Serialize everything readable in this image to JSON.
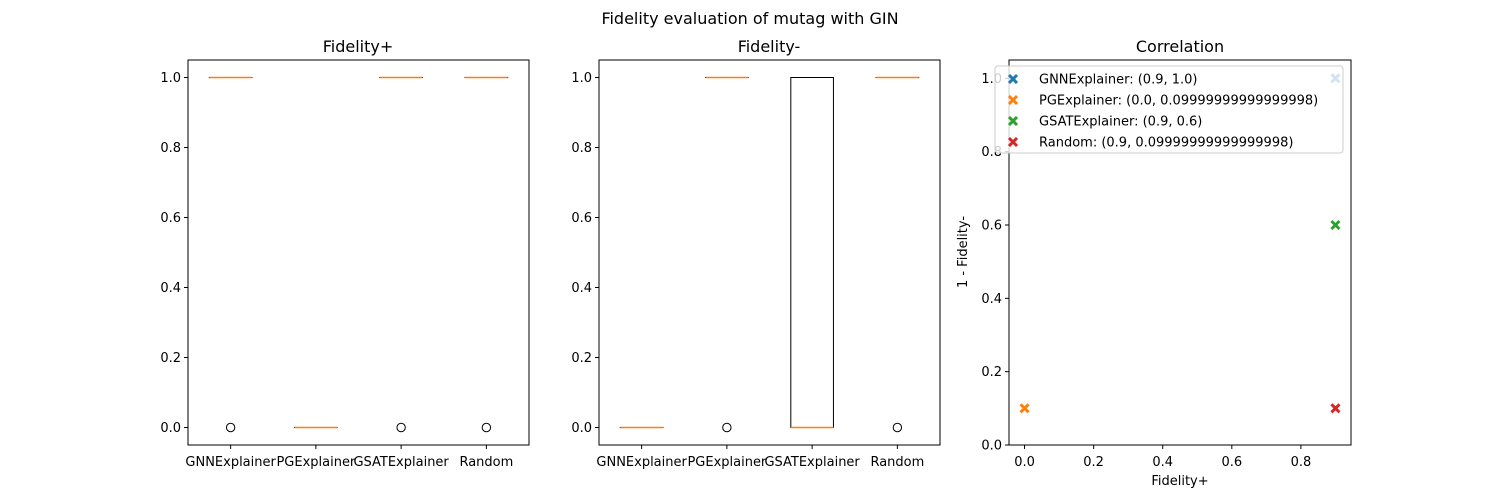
{
  "suptitle": "Fidelity evaluation of mutag with GIN",
  "colors": {
    "median": "#ff7f0e",
    "GNNExplainer": "#1f77b4",
    "PGExplainer": "#ff7f0e",
    "GSATExplainer": "#2ca02c",
    "Random": "#d62728"
  },
  "chart_data": [
    {
      "type": "box",
      "title": "Fidelity+",
      "categories": [
        "GNNExplainer",
        "PGExplainer",
        "GSATExplainer",
        "Random"
      ],
      "ylim": [
        -0.05,
        1.05
      ],
      "yticks": [
        "0.0",
        "0.2",
        "0.4",
        "0.6",
        "0.8",
        "1.0"
      ],
      "boxes": [
        {
          "q1": 1.0,
          "median": 1.0,
          "q3": 1.0,
          "whislo": 1.0,
          "whishi": 1.0,
          "fliers": [
            0.0
          ]
        },
        {
          "q1": 0.0,
          "median": 0.0,
          "q3": 0.0,
          "whislo": 0.0,
          "whishi": 0.0,
          "fliers": []
        },
        {
          "q1": 1.0,
          "median": 1.0,
          "q3": 1.0,
          "whislo": 1.0,
          "whishi": 1.0,
          "fliers": [
            0.0
          ]
        },
        {
          "q1": 1.0,
          "median": 1.0,
          "q3": 1.0,
          "whislo": 1.0,
          "whishi": 1.0,
          "fliers": [
            0.0
          ]
        }
      ]
    },
    {
      "type": "box",
      "title": "Fidelity-",
      "categories": [
        "GNNExplainer",
        "PGExplainer",
        "GSATExplainer",
        "Random"
      ],
      "ylim": [
        -0.05,
        1.05
      ],
      "yticks": [
        "0.0",
        "0.2",
        "0.4",
        "0.6",
        "0.8",
        "1.0"
      ],
      "boxes": [
        {
          "q1": 0.0,
          "median": 0.0,
          "q3": 0.0,
          "whislo": 0.0,
          "whishi": 0.0,
          "fliers": []
        },
        {
          "q1": 1.0,
          "median": 1.0,
          "q3": 1.0,
          "whislo": 1.0,
          "whishi": 1.0,
          "fliers": [
            0.0
          ]
        },
        {
          "q1": 0.0,
          "median": 0.0,
          "q3": 1.0,
          "whislo": 0.0,
          "whishi": 1.0,
          "fliers": []
        },
        {
          "q1": 1.0,
          "median": 1.0,
          "q3": 1.0,
          "whislo": 1.0,
          "whishi": 1.0,
          "fliers": [
            0.0
          ]
        }
      ]
    },
    {
      "type": "scatter",
      "title": "Correlation",
      "xlabel": "Fidelity+",
      "ylabel": "1 - Fidelity-",
      "xlim": [
        -0.045,
        0.945
      ],
      "ylim": [
        0.0,
        1.05
      ],
      "xticks": [
        "0.0",
        "0.2",
        "0.4",
        "0.6",
        "0.8"
      ],
      "yticks": [
        "0.0",
        "0.2",
        "0.4",
        "0.6",
        "0.8",
        "1.0"
      ],
      "legend_position": "upper-right",
      "series": [
        {
          "name": "GNNExplainer: (0.9, 1.0)",
          "x": 0.9,
          "y": 1.0
        },
        {
          "name": "PGExplainer: (0.0, 0.09999999999999998)",
          "x": 0.0,
          "y": 0.09999999999999998
        },
        {
          "name": "GSATExplainer: (0.9, 0.6)",
          "x": 0.9,
          "y": 0.6
        },
        {
          "name": "Random: (0.9, 0.09999999999999998)",
          "x": 0.9,
          "y": 0.09999999999999998
        }
      ]
    }
  ]
}
